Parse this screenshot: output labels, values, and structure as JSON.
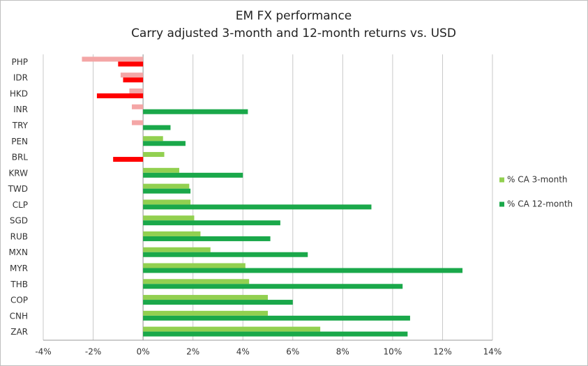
{
  "chart_data": {
    "type": "hbar",
    "title": "EM FX performance",
    "subtitle": "Carry adjusted 3-month and 12-month returns vs. USD",
    "categories": [
      "PHP",
      "IDR",
      "HKD",
      "INR",
      "TRY",
      "PEN",
      "BRL",
      "KRW",
      "TWD",
      "CLP",
      "SGD",
      "RUB",
      "MXN",
      "MYR",
      "THB",
      "COP",
      "CNH",
      "ZAR"
    ],
    "series": [
      {
        "name": "% CA 3-month",
        "color": "#92d050",
        "negative_color": "#f4a6a6",
        "values": [
          -2.45,
          -0.9,
          -0.55,
          -0.45,
          -0.45,
          0.8,
          0.85,
          1.45,
          1.85,
          1.9,
          2.05,
          2.3,
          2.7,
          4.1,
          4.25,
          5.0,
          5.0,
          7.1
        ]
      },
      {
        "name": "% CA 12-month",
        "color": "#1aa84a",
        "negative_color": "#ff0000",
        "values": [
          -1.0,
          -0.8,
          -1.85,
          4.2,
          1.1,
          1.7,
          -1.2,
          4.0,
          1.9,
          9.15,
          5.5,
          5.1,
          6.6,
          12.8,
          10.4,
          6.0,
          10.7,
          10.6
        ]
      }
    ],
    "xlim": [
      -4,
      14
    ],
    "xticks": [
      {
        "value": -4,
        "label": "-4%"
      },
      {
        "value": -2,
        "label": "-2%"
      },
      {
        "value": 0,
        "label": "0%"
      },
      {
        "value": 2,
        "label": "2%"
      },
      {
        "value": 4,
        "label": "4%"
      },
      {
        "value": 6,
        "label": "6%"
      },
      {
        "value": 8,
        "label": "8%"
      },
      {
        "value": 10,
        "label": "10%"
      },
      {
        "value": 12,
        "label": "12%"
      },
      {
        "value": 14,
        "label": "14%"
      }
    ],
    "grid": true,
    "legend": "right"
  }
}
